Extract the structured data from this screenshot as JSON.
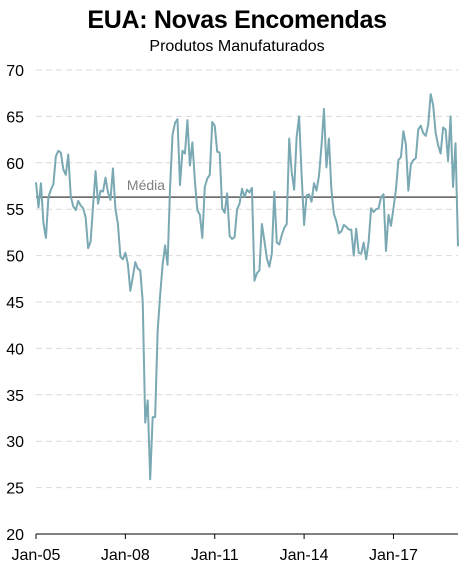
{
  "chart_data": {
    "type": "line",
    "title": "EUA: Novas Encomendas",
    "subtitle": "Produtos Manufaturados",
    "xlabel": "",
    "ylabel": "",
    "ylim": [
      20,
      70
    ],
    "yticks": [
      20,
      25,
      30,
      35,
      40,
      45,
      50,
      55,
      60,
      65,
      70
    ],
    "xlim": [
      "2005-01",
      "2019-03"
    ],
    "xticks": [
      {
        "label": "Jan-05",
        "date": "2005-01"
      },
      {
        "label": "Jan-08",
        "date": "2008-01"
      },
      {
        "label": "Jan-11",
        "date": "2011-01"
      },
      {
        "label": "Jan-14",
        "date": "2014-01"
      },
      {
        "label": "Jan-17",
        "date": "2017-01"
      }
    ],
    "grid": "horizontal dashed",
    "average": {
      "label": "Média",
      "value": 56.3
    },
    "series": [
      {
        "color": "#7aa9b3",
        "start": "2005-01",
        "frequency": "monthly",
        "values": [
          57.9,
          55.2,
          57.8,
          53.5,
          51.9,
          56.3,
          57.1,
          57.7,
          60.7,
          61.3,
          61.1,
          59.3,
          58.7,
          60.9,
          56.4,
          55.3,
          54.9,
          55.9,
          55.4,
          55.1,
          54.1,
          50.8,
          51.5,
          55.4,
          59.1,
          55.6,
          57.0,
          56.9,
          58.4,
          56.8,
          56.0,
          59.4,
          55.0,
          53.4,
          49.9,
          49.6,
          50.3,
          49.1,
          46.2,
          47.7,
          49.3,
          48.6,
          48.4,
          45.0,
          32.0,
          34.4,
          25.9,
          32.6,
          32.6,
          41.9,
          45.7,
          49.0,
          51.1,
          49.0,
          57.3,
          63.0,
          64.3,
          64.7,
          57.6,
          61.3,
          61.0,
          64.6,
          59.7,
          62.2,
          58.1,
          54.9,
          54.4,
          51.9,
          57.4,
          58.3,
          58.7,
          64.4,
          64.0,
          61.2,
          61.1,
          55.1,
          54.6,
          56.7,
          52.1,
          51.8,
          52.0,
          55.0,
          55.6,
          57.2,
          56.3,
          57.1,
          56.8,
          57.3,
          47.3,
          48.1,
          48.4,
          53.4,
          51.6,
          49.7,
          48.8,
          50.2,
          56.9,
          51.4,
          51.2,
          52.2,
          53.0,
          53.4,
          62.6,
          59.0,
          57.1,
          62.8,
          65.0,
          58.7,
          53.3,
          56.5,
          56.6,
          55.8,
          57.8,
          57.0,
          58.6,
          61.8,
          65.8,
          59.5,
          62.6,
          57.1,
          54.5,
          53.7,
          52.4,
          52.6,
          53.3,
          53.1,
          52.8,
          52.8,
          50.0,
          52.9,
          50.3,
          50.2,
          51.4,
          49.6,
          51.5,
          55.1,
          54.7,
          55.0,
          55.1,
          56.3,
          56.6,
          50.5,
          54.4,
          53.2,
          55.1,
          57.1,
          60.3,
          60.6,
          63.4,
          62.0,
          57.0,
          59.8,
          60.3,
          60.5,
          63.6,
          64.0,
          63.2,
          62.9,
          64.1,
          67.4,
          66.2,
          63.2,
          61.9,
          61.0,
          63.8,
          63.6,
          60.2,
          65.0,
          57.4,
          62.1,
          51.0
        ]
      }
    ]
  }
}
